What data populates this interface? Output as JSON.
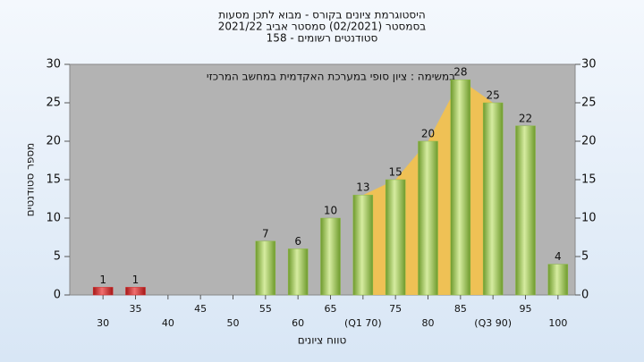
{
  "chart_data": {
    "type": "bar",
    "title": [
      "היסטוגרמת ציונים בקורס - מבוא לתכן מסעות",
      "בסמסטר (02/2021) סמסטר אביב 2021/22",
      "סטודנטים רשומים - 158"
    ],
    "annotation": "במשימה : ציון סופי במערכת האקדמית במחשב המרכזי",
    "xlabel": "טווח ציונים",
    "ylabel": "מספר סטודנטים",
    "categories": [
      "30",
      "35",
      "40",
      "45",
      "50",
      "55",
      "60",
      "65",
      "(Q1 70)",
      "75",
      "80",
      "85",
      "(Q3 90)",
      "95",
      "100"
    ],
    "values": [
      1,
      1,
      0,
      0,
      0,
      7,
      6,
      10,
      13,
      15,
      20,
      28,
      25,
      22,
      4
    ],
    "colors": [
      "#d42a2a",
      "#d42a2a",
      "#8cba45",
      "#8cba45",
      "#8cba45",
      "#8cba45",
      "#8cba45",
      "#8cba45",
      "#8cba45",
      "#8cba45",
      "#8cba45",
      "#8cba45",
      "#8cba45",
      "#8cba45",
      "#8cba45"
    ],
    "ylim": [
      0,
      30
    ],
    "yticks": [
      0,
      5,
      10,
      15,
      20,
      25,
      30
    ],
    "grid": false
  }
}
